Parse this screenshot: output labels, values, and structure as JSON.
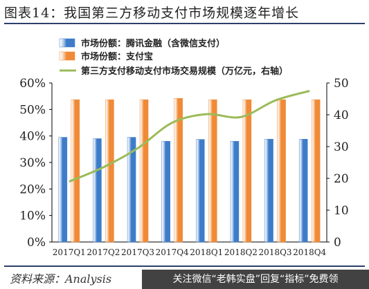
{
  "figure_title": "图表14：我国第三方移动支付市场规模逐年增长",
  "source_label": "资料来源：Analysis",
  "watermark": "关注微信“老韩实盘”回复“指标”免费领",
  "colors": {
    "tencent": "#3d7cc9",
    "alipay": "#f08a36",
    "line": "#9bbb59",
    "rule": "#2c3f6b"
  },
  "chart_data": {
    "type": "bar",
    "categories": [
      "2017Q1",
      "2017Q2",
      "2017Q3",
      "2017Q4",
      "2018Q1",
      "2018Q2",
      "2018Q3",
      "2018Q4"
    ],
    "series": [
      {
        "name": "市场份额：腾讯金融（含微信支付）",
        "type": "bar",
        "axis": "left",
        "values": [
          39.5,
          39.0,
          39.5,
          38.0,
          38.7,
          38.0,
          38.8,
          38.8
        ]
      },
      {
        "name": "市场份额：支付宝",
        "type": "bar",
        "axis": "left",
        "values": [
          53.7,
          53.7,
          53.7,
          54.2,
          53.7,
          53.7,
          53.7,
          53.7
        ]
      },
      {
        "name": "第三方支付移动支付市场交易规模（万亿元，右轴）",
        "type": "line",
        "axis": "right",
        "values": [
          19,
          23.5,
          29.5,
          37.5,
          40.2,
          39.3,
          44.5,
          47.5
        ]
      }
    ],
    "left_axis": {
      "min": 0,
      "max": 60,
      "step": 10,
      "format": "percent",
      "ticks": [
        "0%",
        "10%",
        "20%",
        "30%",
        "40%",
        "50%",
        "60%"
      ]
    },
    "right_axis": {
      "min": 0,
      "max": 50,
      "step": 10,
      "ticks": [
        "0",
        "10",
        "20",
        "30",
        "40",
        "50"
      ]
    },
    "legend_position": "top-left",
    "grid": false
  }
}
